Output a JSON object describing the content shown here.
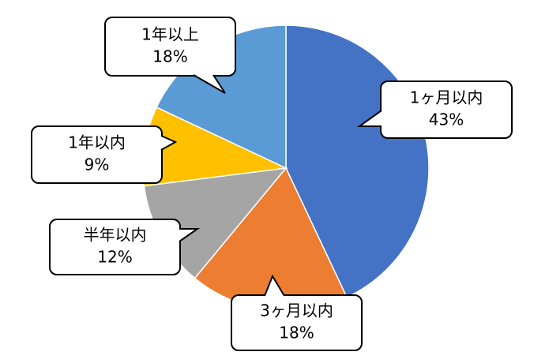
{
  "chart_data": {
    "type": "pie",
    "categories": [
      "1ヶ月以内",
      "3ヶ月以内",
      "半年以内",
      "1年以内",
      "1年以上"
    ],
    "values": [
      43,
      18,
      12,
      9,
      18
    ],
    "value_labels": [
      "43%",
      "18%",
      "12%",
      "9%",
      "18%"
    ],
    "colors": [
      "#4472c4",
      "#ed7d31",
      "#a5a5a5",
      "#ffc000",
      "#5b9bd5"
    ]
  }
}
